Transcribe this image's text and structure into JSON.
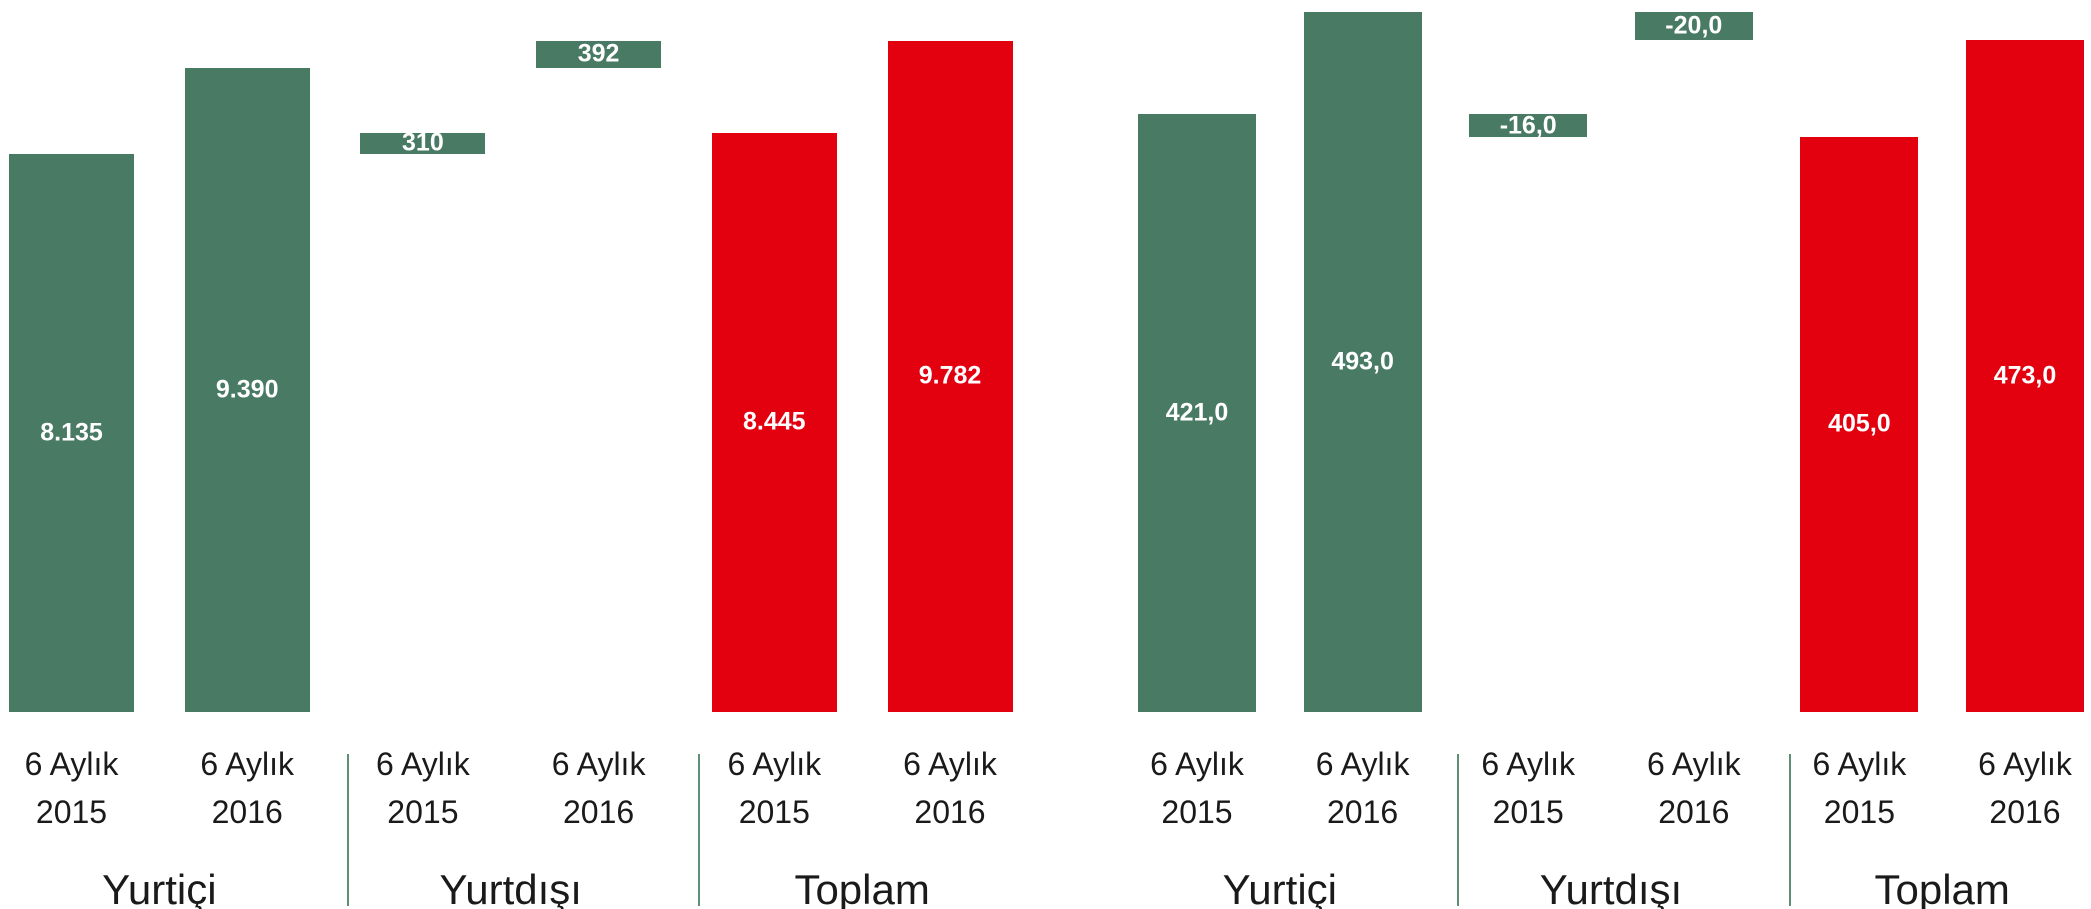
{
  "chart_data": [
    {
      "type": "waterfall",
      "groups": [
        "Yurtiçi",
        "Yurtdışı",
        "Toplam"
      ],
      "categories": [
        "6 Aylık 2015",
        "6 Aylık 2016",
        "6 Aylık 2015",
        "6 Aylık 2016",
        "6 Aylık 2015",
        "6 Aylık 2016"
      ],
      "measure": [
        "absolute",
        "absolute",
        "relative",
        "relative",
        "total",
        "total"
      ],
      "values": [
        8135,
        9390,
        310,
        392,
        8445,
        9782
      ],
      "value_labels": [
        "8.135",
        "9.390",
        "310",
        "392",
        "8.445",
        "9.782"
      ],
      "colors": [
        "#487a64",
        "#487a64",
        "#487a64",
        "#487a64",
        "#e3000f",
        "#e3000f"
      ],
      "ylim": [
        0,
        10000
      ]
    },
    {
      "type": "waterfall",
      "groups": [
        "Yurtiçi",
        "Yurtdışı",
        "Toplam"
      ],
      "categories": [
        "6 Aylık 2015",
        "6 Aylık 2016",
        "6 Aylık 2015",
        "6 Aylık 2016",
        "6 Aylık 2015",
        "6 Aylık 2016"
      ],
      "measure": [
        "absolute",
        "absolute",
        "relative",
        "relative",
        "total",
        "total"
      ],
      "values": [
        421,
        493,
        -16,
        -20,
        405,
        473
      ],
      "value_labels": [
        "421,0",
        "493,0",
        "-16,0",
        "-20,0",
        "405,0",
        "473,0"
      ],
      "colors": [
        "#487a64",
        "#487a64",
        "#487a64",
        "#487a64",
        "#e3000f",
        "#e3000f"
      ],
      "ylim": [
        0,
        500
      ]
    }
  ]
}
